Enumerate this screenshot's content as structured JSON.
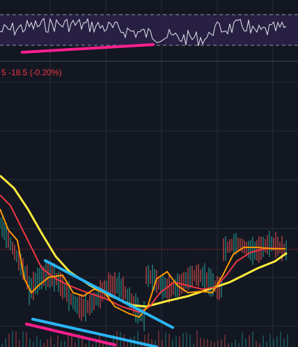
{
  "header": {
    "price_change": "5 -18.5 (-0.20%)"
  }
}
